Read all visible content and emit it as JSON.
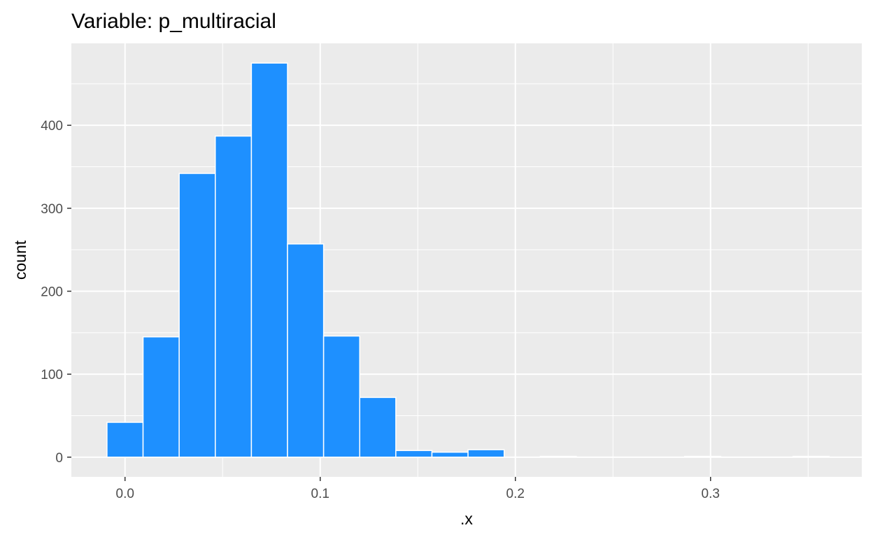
{
  "chart_data": {
    "type": "bar",
    "title": "Variable: p_multiracial",
    "xlabel": ".x",
    "ylabel": "count",
    "xlim": [
      -0.0275,
      0.3775
    ],
    "ylim": [
      -23.75,
      498.75
    ],
    "x_ticks": [
      0.0,
      0.1,
      0.2,
      0.3
    ],
    "x_tick_labels": [
      "0.0",
      "0.1",
      "0.2",
      "0.3"
    ],
    "y_ticks": [
      0,
      100,
      200,
      300,
      400
    ],
    "y_tick_labels": [
      "0",
      "100",
      "200",
      "300",
      "400"
    ],
    "bin_width": 0.0185,
    "bin_centers": [
      0.0,
      0.0185,
      0.037,
      0.0555,
      0.074,
      0.0925,
      0.111,
      0.1295,
      0.148,
      0.1665,
      0.185,
      0.2035,
      0.222,
      0.2405,
      0.259,
      0.2775,
      0.296,
      0.3145,
      0.333,
      0.3515
    ],
    "values": [
      42,
      145,
      342,
      387,
      475,
      257,
      146,
      72,
      8,
      6,
      9,
      0,
      1,
      0,
      0,
      0,
      1,
      0,
      0,
      1
    ],
    "grid": true,
    "legend": "none",
    "colors": {
      "bar_fill": "#1E90FF",
      "bar_outline": "#FFFFFF",
      "panel_background": "#EBEBEB",
      "grid_line": "#FFFFFF",
      "tick_label": "#4D4D4D",
      "title": "#000000"
    }
  }
}
